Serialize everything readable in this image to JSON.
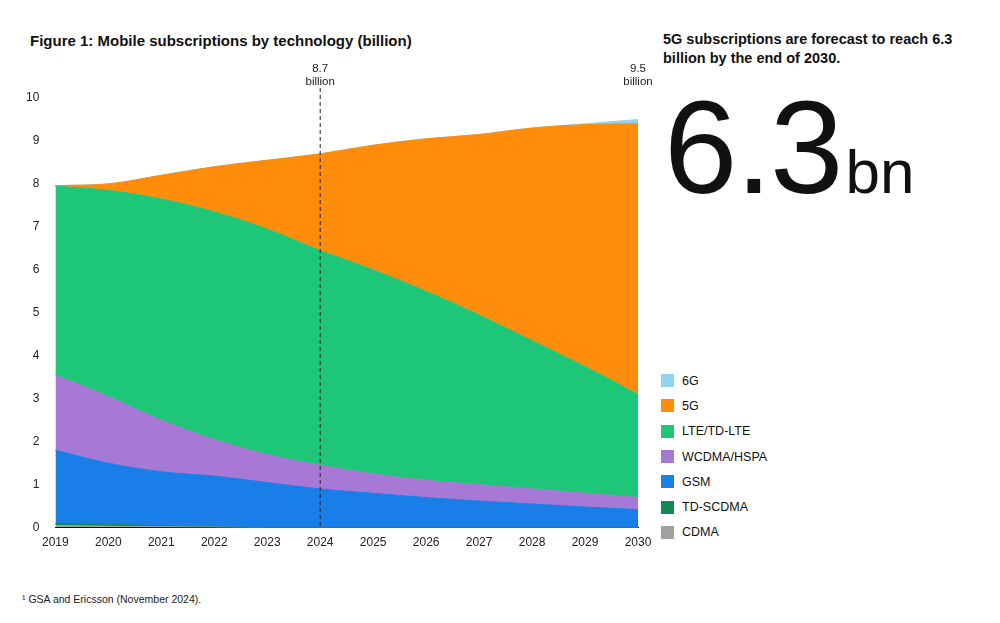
{
  "chart_data": {
    "type": "area",
    "title": "Figure 1: Mobile subscriptions by technology (billion)",
    "subtitle": "5G subscriptions are forecast to reach 6.3 billion by the end of 2030.",
    "headline": "6.3bn",
    "source": "¹ GSA and Ericsson (November 2024).",
    "categories": [
      "2019",
      "2020",
      "2021",
      "2022",
      "2023",
      "2024",
      "2025",
      "2026",
      "2027",
      "2028",
      "2029",
      "2030"
    ],
    "series": [
      {
        "name": "6G",
        "color": "#8fd3f0",
        "values": [
          0,
          0,
          0,
          0,
          0,
          0,
          0,
          0,
          0,
          0,
          0.02,
          0.1
        ]
      },
      {
        "name": "5G",
        "color": "#ff8c0a",
        "values": [
          0.01,
          0.15,
          0.55,
          1.05,
          1.6,
          2.25,
          2.9,
          3.55,
          4.2,
          4.95,
          5.63,
          6.3
        ]
      },
      {
        "name": "LTE/TD-LTE",
        "color": "#1ec677",
        "values": [
          4.4,
          4.8,
          5.15,
          5.3,
          5.25,
          5.0,
          4.75,
          4.4,
          3.95,
          3.45,
          2.95,
          2.4
        ]
      },
      {
        "name": "WCDMA/HSPA",
        "color": "#a878d6",
        "values": [
          1.75,
          1.55,
          1.2,
          0.85,
          0.65,
          0.55,
          0.45,
          0.4,
          0.38,
          0.35,
          0.32,
          0.28
        ]
      },
      {
        "name": "GSM",
        "color": "#1a7ee8",
        "values": [
          1.7,
          1.42,
          1.26,
          1.18,
          1.05,
          0.9,
          0.8,
          0.7,
          0.62,
          0.55,
          0.48,
          0.42
        ]
      },
      {
        "name": "TD-SCDMA",
        "color": "#128a55",
        "values": [
          0.05,
          0.05,
          0.02,
          0.01,
          0,
          0,
          0,
          0,
          0,
          0,
          0,
          0
        ]
      },
      {
        "name": "CDMA",
        "color": "#a0a0a0",
        "values": [
          0.05,
          0.03,
          0.02,
          0.01,
          0,
          0,
          0,
          0,
          0,
          0,
          0,
          0
        ]
      }
    ],
    "annotations": [
      {
        "x": "2024",
        "text": "8.7 billion",
        "line_style": "dashed"
      },
      {
        "x": "2030",
        "text": "9.5 billion"
      }
    ],
    "ylim": [
      0,
      10
    ],
    "yticks": [
      0,
      1,
      2,
      3,
      4,
      5,
      6,
      7,
      8,
      9,
      10
    ],
    "stacked": true,
    "grid": false,
    "legend": "right"
  }
}
